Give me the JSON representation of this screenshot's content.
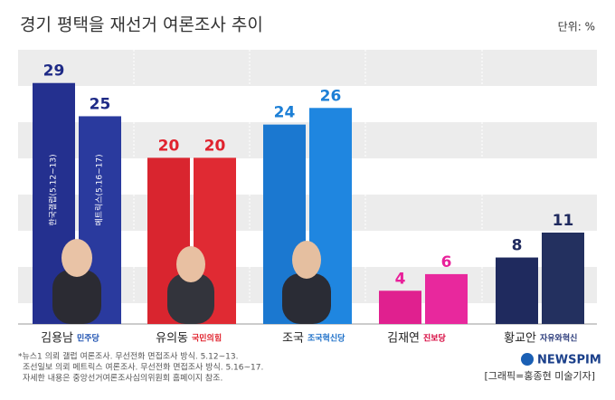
{
  "chart_data": {
    "type": "bar",
    "title": "경기 평택을 재선거 여론조사 추이",
    "unit_label": "단위: %",
    "categories": [
      "김용남",
      "유의동",
      "조국",
      "김재연",
      "황교안"
    ],
    "parties": [
      "민주당",
      "국민의힘",
      "조국혁신당",
      "진보당",
      "자유와혁신"
    ],
    "party_colors": [
      "#1a4fb0",
      "#e0232e",
      "#1c6fc8",
      "#d6003a",
      "#2a3a7a"
    ],
    "label_colors": [
      "#1e2a86",
      "#e0232e",
      "#1c7fd6",
      "#e8209a",
      "#1f2a5e"
    ],
    "series": [
      {
        "name": "한국갤럽(5.12~13)",
        "colors": [
          "#24308f",
          "#d9252f",
          "#1b78d0",
          "#e0208f",
          "#1f2a5e"
        ],
        "values": [
          29,
          20,
          24,
          4,
          8
        ]
      },
      {
        "name": "메트릭스(5.16~17)",
        "colors": [
          "#2a3a9e",
          "#e02a33",
          "#1f86e0",
          "#e8289d",
          "#23305f"
        ],
        "values": [
          25,
          20,
          26,
          6,
          11
        ]
      }
    ],
    "ylim": [
      0,
      33
    ],
    "notes": [
      "*뉴스1 의뢰 갤럽 여론조사. 무선전화 면접조사 방식. 5.12~13.",
      "조선일보 의뢰 메트릭스 여론조사. 무선전화 면접조사 방식. 5.16~17.",
      "자세한 내용은 중앙선거여론조사심의위원회 홈페이지 참조."
    ],
    "brand": "NEWSPIM",
    "credit": "[그래픽=홍종현 미술기자]"
  }
}
